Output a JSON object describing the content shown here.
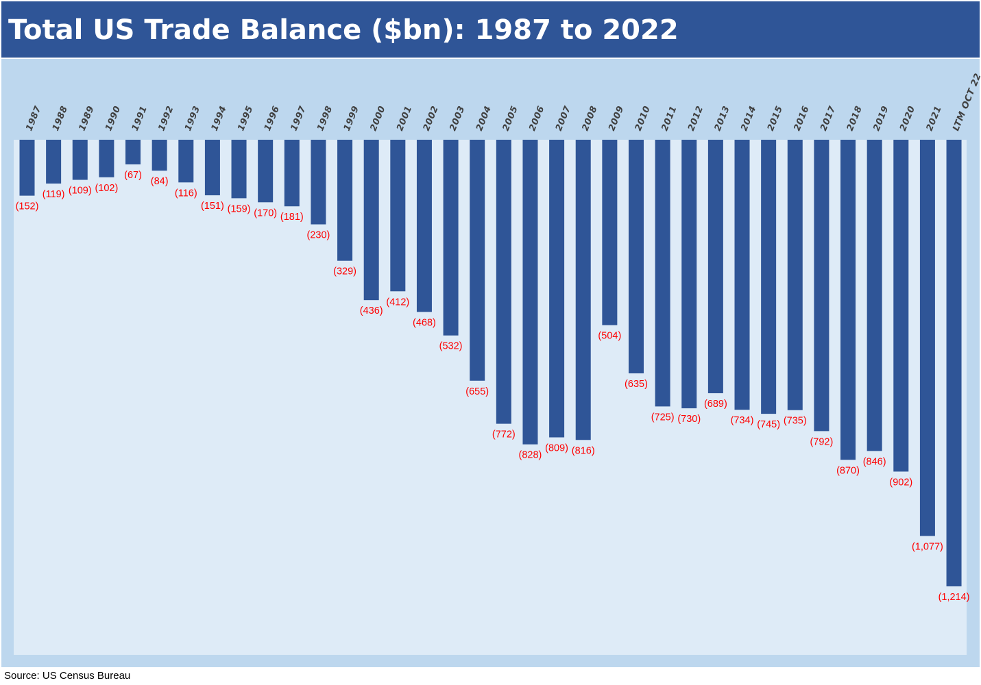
{
  "header": {
    "title": "Total US Trade Balance ($bn): 1987 to 2022"
  },
  "source": "Source: US Census Bureau",
  "colors": {
    "title_background": "#2F5597",
    "bar": "#2F5597",
    "outer_background": "#BDD7EE",
    "plot_background": "#DEEBF7",
    "value_label": "#FF0000",
    "year_label": "#404040"
  },
  "chart_data": {
    "type": "bar",
    "title": "Total US Trade Balance ($bn): 1987 to 2022",
    "xlabel": "",
    "ylabel": "",
    "categories": [
      "1987",
      "1988",
      "1989",
      "1990",
      "1991",
      "1992",
      "1993",
      "1994",
      "1995",
      "1996",
      "1997",
      "1998",
      "1999",
      "2000",
      "2001",
      "2002",
      "2003",
      "2004",
      "2005",
      "2006",
      "2007",
      "2008",
      "2009",
      "2010",
      "2011",
      "2012",
      "2013",
      "2014",
      "2015",
      "2016",
      "2017",
      "2018",
      "2019",
      "2020",
      "2021",
      "LTM OCT 22"
    ],
    "values": [
      -152,
      -119,
      -109,
      -102,
      -67,
      -84,
      -116,
      -151,
      -159,
      -170,
      -181,
      -230,
      -329,
      -436,
      -412,
      -468,
      -532,
      -655,
      -772,
      -828,
      -809,
      -816,
      -504,
      -635,
      -725,
      -730,
      -689,
      -734,
      -745,
      -735,
      -792,
      -870,
      -846,
      -902,
      -1077,
      -1214
    ],
    "value_labels": [
      "(152)",
      "(119)",
      "(109)",
      "(102)",
      "(67)",
      "(84)",
      "(116)",
      "(151)",
      "(159)",
      "(170)",
      "(181)",
      "(230)",
      "(329)",
      "(436)",
      "(412)",
      "(468)",
      "(532)",
      "(655)",
      "(772)",
      "(828)",
      "(809)",
      "(816)",
      "(504)",
      "(635)",
      "(725)",
      "(730)",
      "(689)",
      "(734)",
      "(745)",
      "(735)",
      "(792)",
      "(870)",
      "(846)",
      "(902)",
      "(1,077)",
      "(1,214)"
    ],
    "ylim": [
      -1214,
      0
    ],
    "grid": false,
    "legend": "none",
    "category_axis_position": "top",
    "category_label_rotation": "slanted"
  }
}
